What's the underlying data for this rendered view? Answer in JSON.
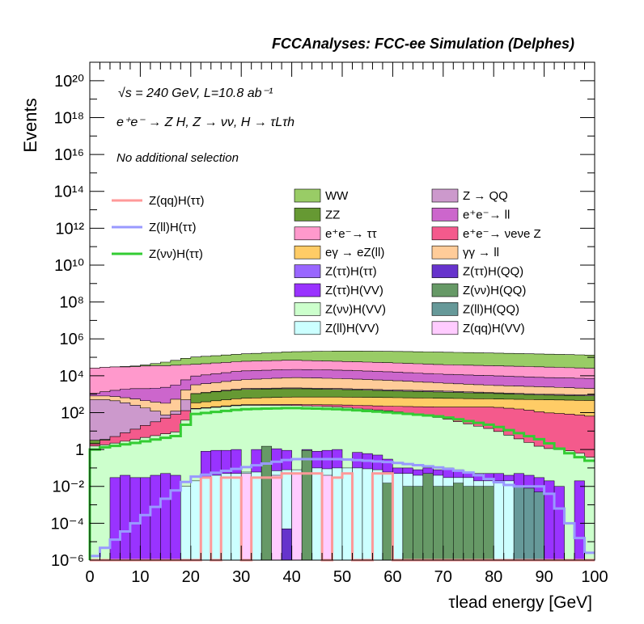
{
  "chart_data": {
    "type": "area",
    "title": "FCCAnalyses: FCC-ee Simulation (Delphes)",
    "annotations": [
      "√s = 240 GeV, L=10.8 ab⁻¹",
      "e⁺e⁻ → Z H, Z → νν, H → τLτh",
      "No additional selection"
    ],
    "xlabel": "τlead energy [GeV]",
    "ylabel": "Events",
    "xlim": [
      0,
      100
    ],
    "ylim": [
      1e-06,
      1e+21
    ],
    "log_y": true,
    "x_ticks": [
      "0",
      "10",
      "20",
      "30",
      "40",
      "50",
      "60",
      "70",
      "80",
      "90",
      "100"
    ],
    "y_ticks": [
      "10⁻⁶",
      "10⁻⁴",
      "10⁻²",
      "1",
      "10²",
      "10⁴",
      "10⁶",
      "10⁸",
      "10¹⁰",
      "10¹²",
      "10¹⁴",
      "10¹⁶",
      "10¹⁸",
      "10²⁰"
    ],
    "bins": 50,
    "stack_levels": [
      {
        "name": "Z(νν)H(VV)",
        "color": "#ccffcc",
        "x": [
          0,
          2,
          6,
          10,
          16,
          18,
          20,
          30,
          40,
          50,
          60,
          70,
          80,
          86,
          90,
          96,
          100
        ],
        "y": [
          1.5,
          1.6,
          2.5,
          4,
          8,
          10,
          150,
          250,
          250,
          200,
          120,
          50,
          12,
          3,
          1.2,
          0.8,
          0.3
        ]
      },
      {
        "name": "e⁺e⁻ → νeνe Z",
        "color": "#f45a8c",
        "x": [
          0,
          20,
          30,
          40,
          50,
          60,
          70,
          80,
          86,
          90,
          96,
          100
        ],
        "y": [
          1.6,
          160,
          270,
          280,
          260,
          220,
          200,
          200,
          150,
          100,
          80,
          60
        ]
      },
      {
        "name": "eγ → eZ(ll)",
        "color": "#ffcc66",
        "x": [
          0,
          10,
          18,
          20,
          30,
          40,
          50,
          60,
          70,
          80,
          90,
          100
        ],
        "y": [
          2,
          3,
          5,
          320,
          600,
          700,
          700,
          650,
          600,
          550,
          500,
          450
        ]
      },
      {
        "name": "ZZ",
        "color": "#669933",
        "x": [
          0,
          10,
          18,
          20,
          30,
          40,
          50,
          60,
          70,
          80,
          90,
          100
        ],
        "y": [
          3,
          5,
          12,
          1000,
          1800,
          2000,
          1800,
          1500,
          1300,
          1100,
          900,
          800
        ]
      },
      {
        "name": "Z → QQ",
        "color": "#cc99cc",
        "x": [
          0,
          4,
          8,
          12,
          16,
          20,
          30,
          40,
          50,
          60,
          70,
          80,
          90,
          100
        ],
        "y": [
          500,
          500,
          300,
          150,
          60,
          1000,
          2000,
          2200,
          2000,
          1700,
          1500,
          1200,
          1000,
          900
        ]
      },
      {
        "name": "γγ → ll",
        "color": "#ffcc99",
        "x": [
          0,
          4,
          8,
          12,
          16,
          20,
          30,
          40,
          50,
          60,
          70,
          80,
          90,
          100
        ],
        "y": [
          800,
          800,
          600,
          400,
          300,
          3000,
          6000,
          8000,
          7000,
          5500,
          4000,
          3000,
          2500,
          2000
        ]
      },
      {
        "name": "e⁺e⁻ → ll",
        "color": "#cc66cc",
        "x": [
          0,
          4,
          8,
          12,
          16,
          18,
          20,
          30,
          40,
          50,
          60,
          70,
          80,
          90,
          100
        ],
        "y": [
          1000,
          1500,
          2000,
          2000,
          2500,
          4000,
          9000,
          18000,
          22000,
          20000,
          16000,
          12000,
          10000,
          8000,
          7000
        ]
      },
      {
        "name": "e⁺e⁻ → ττ",
        "color": "#ff99cc",
        "x": [
          0,
          4,
          8,
          12,
          16,
          18,
          20,
          30,
          40,
          50,
          60,
          70,
          80,
          90,
          100
        ],
        "y": [
          25000,
          30000,
          30000,
          35000,
          35000,
          40000,
          40000,
          60000,
          70000,
          60000,
          50000,
          40000,
          35000,
          30000,
          25000
        ]
      },
      {
        "name": "WW",
        "color": "#99cc66",
        "x": [
          0,
          10,
          16,
          20,
          30,
          40,
          50,
          60,
          70,
          80,
          90,
          100
        ],
        "y": [
          25000,
          35000,
          60000,
          100000,
          150000,
          200000,
          220000,
          210000,
          190000,
          170000,
          150000,
          130000
        ]
      }
    ],
    "bars": [
      {
        "x": 4,
        "y": 0.03,
        "color": "#9933ff"
      },
      {
        "x": 6,
        "y": 0.04,
        "color": "#9933ff"
      },
      {
        "x": 8,
        "y": 0.03,
        "color": "#9933ff"
      },
      {
        "x": 10,
        "y": 0.03,
        "color": "#9933ff"
      },
      {
        "x": 12,
        "y": 0.04,
        "color": "#9933ff"
      },
      {
        "x": 14,
        "y": 0.05,
        "color": "#9933ff"
      },
      {
        "x": 16,
        "y": 0.04,
        "color": "#9933ff"
      },
      {
        "x": 22,
        "y": 0.8,
        "color": "#9933ff"
      },
      {
        "x": 24,
        "y": 0.9,
        "color": "#9933ff"
      },
      {
        "x": 26,
        "y": 0.9,
        "color": "#9933ff"
      },
      {
        "x": 28,
        "y": 1.0,
        "color": "#9933ff"
      },
      {
        "x": 32,
        "y": 1.0,
        "color": "#9933ff"
      },
      {
        "x": 36,
        "y": 1.1,
        "color": "#9933ff"
      },
      {
        "x": 38,
        "y": 0.9,
        "color": "#9933ff"
      },
      {
        "x": 42,
        "y": 1.0,
        "color": "#9933ff"
      },
      {
        "x": 44,
        "y": 0.8,
        "color": "#9933ff"
      },
      {
        "x": 46,
        "y": 0.9,
        "color": "#9933ff"
      },
      {
        "x": 48,
        "y": 1.0,
        "color": "#9933ff"
      },
      {
        "x": 52,
        "y": 0.7,
        "color": "#9933ff"
      },
      {
        "x": 54,
        "y": 0.6,
        "color": "#9933ff"
      },
      {
        "x": 56,
        "y": 0.5,
        "color": "#9933ff"
      },
      {
        "x": 58,
        "y": 0.3,
        "color": "#9933ff"
      },
      {
        "x": 60,
        "y": 0.1,
        "color": "#9933ff"
      },
      {
        "x": 62,
        "y": 0.1,
        "color": "#9933ff"
      },
      {
        "x": 64,
        "y": 0.08,
        "color": "#9933ff"
      },
      {
        "x": 66,
        "y": 0.1,
        "color": "#9933ff"
      },
      {
        "x": 68,
        "y": 0.08,
        "color": "#9933ff"
      },
      {
        "x": 70,
        "y": 0.1,
        "color": "#9933ff"
      },
      {
        "x": 72,
        "y": 0.08,
        "color": "#9933ff"
      },
      {
        "x": 74,
        "y": 0.06,
        "color": "#9933ff"
      },
      {
        "x": 76,
        "y": 0.05,
        "color": "#9933ff"
      },
      {
        "x": 78,
        "y": 0.05,
        "color": "#9933ff"
      },
      {
        "x": 80,
        "y": 0.05,
        "color": "#9933ff"
      },
      {
        "x": 82,
        "y": 0.04,
        "color": "#9933ff"
      },
      {
        "x": 84,
        "y": 0.05,
        "color": "#9933ff"
      },
      {
        "x": 86,
        "y": 0.04,
        "color": "#9933ff"
      },
      {
        "x": 88,
        "y": 0.03,
        "color": "#9933ff"
      },
      {
        "x": 90,
        "y": 0.02,
        "color": "#9933ff"
      },
      {
        "x": 92,
        "y": 0.01,
        "color": "#9933ff"
      },
      {
        "x": 96,
        "y": 0.02,
        "color": "#9933ff"
      },
      {
        "x": 18,
        "y": 0.01,
        "color": "#ccffff"
      },
      {
        "x": 20,
        "y": 0.02,
        "color": "#ccffff"
      },
      {
        "x": 22,
        "y": 0.03,
        "color": "#ccffff"
      },
      {
        "x": 24,
        "y": 0.04,
        "color": "#ccffff"
      },
      {
        "x": 26,
        "y": 0.05,
        "color": "#ccffff"
      },
      {
        "x": 28,
        "y": 0.05,
        "color": "#ccffff"
      },
      {
        "x": 30,
        "y": 0.06,
        "color": "#ccffff"
      },
      {
        "x": 32,
        "y": 0.06,
        "color": "#ccffff"
      },
      {
        "x": 36,
        "y": 0.07,
        "color": "#ccffff"
      },
      {
        "x": 38,
        "y": 0.08,
        "color": "#ccffff"
      },
      {
        "x": 40,
        "y": 0.08,
        "color": "#ccffff"
      },
      {
        "x": 42,
        "y": 0.1,
        "color": "#ccffff"
      },
      {
        "x": 44,
        "y": 0.1,
        "color": "#ccffff"
      },
      {
        "x": 46,
        "y": 0.09,
        "color": "#ccffff"
      },
      {
        "x": 48,
        "y": 0.1,
        "color": "#ccffff"
      },
      {
        "x": 50,
        "y": 0.1,
        "color": "#ccffff"
      },
      {
        "x": 52,
        "y": 0.1,
        "color": "#ccffff"
      },
      {
        "x": 54,
        "y": 0.09,
        "color": "#ccffff"
      },
      {
        "x": 56,
        "y": 0.08,
        "color": "#ccffff"
      },
      {
        "x": 58,
        "y": 0.06,
        "color": "#ccffff"
      },
      {
        "x": 60,
        "y": 0.05,
        "color": "#ccffff"
      },
      {
        "x": 62,
        "y": 0.05,
        "color": "#ccffff"
      },
      {
        "x": 64,
        "y": 0.04,
        "color": "#ccffff"
      },
      {
        "x": 66,
        "y": 0.04,
        "color": "#ccffff"
      },
      {
        "x": 68,
        "y": 0.04,
        "color": "#ccffff"
      },
      {
        "x": 70,
        "y": 0.03,
        "color": "#ccffff"
      },
      {
        "x": 72,
        "y": 0.03,
        "color": "#ccffff"
      },
      {
        "x": 74,
        "y": 0.03,
        "color": "#ccffff"
      },
      {
        "x": 76,
        "y": 0.02,
        "color": "#ccffff"
      },
      {
        "x": 78,
        "y": 0.02,
        "color": "#ccffff"
      },
      {
        "x": 80,
        "y": 0.02,
        "color": "#ccffff"
      },
      {
        "x": 82,
        "y": 0.02,
        "color": "#ccffff"
      },
      {
        "x": 34,
        "y": 1.5,
        "color": "#669966"
      },
      {
        "x": 42,
        "y": 0.9,
        "color": "#669966"
      },
      {
        "x": 58,
        "y": 0.015,
        "color": "#669966"
      },
      {
        "x": 62,
        "y": 0.01,
        "color": "#669966"
      },
      {
        "x": 64,
        "y": 0.01,
        "color": "#669966"
      },
      {
        "x": 66,
        "y": 0.05,
        "color": "#669966"
      },
      {
        "x": 68,
        "y": 0.01,
        "color": "#669966"
      },
      {
        "x": 70,
        "y": 0.01,
        "color": "#669966"
      },
      {
        "x": 72,
        "y": 0.015,
        "color": "#669966"
      },
      {
        "x": 74,
        "y": 0.01,
        "color": "#669966"
      },
      {
        "x": 76,
        "y": 0.01,
        "color": "#669966"
      },
      {
        "x": 78,
        "y": 0.01,
        "color": "#669966"
      },
      {
        "x": 84,
        "y": 0.01,
        "color": "#669999"
      },
      {
        "x": 86,
        "y": 0.008,
        "color": "#669999"
      },
      {
        "x": 88,
        "y": 0.005,
        "color": "#669999"
      },
      {
        "x": 38,
        "y": 5e-05,
        "color": "#6633cc"
      },
      {
        "x": 30,
        "y": 0.05,
        "color": "#ffccff"
      },
      {
        "x": 36,
        "y": 0.04,
        "color": "#ffccff"
      },
      {
        "x": 40,
        "y": 0.05,
        "color": "#ffccff"
      },
      {
        "x": 46,
        "y": 0.04,
        "color": "#ffccff"
      }
    ],
    "lines": [
      {
        "name": "Z(qq)H(ττ)",
        "color": "#ff9999",
        "x": [
          0,
          20,
          22,
          24,
          26,
          28,
          30,
          32,
          38,
          40,
          44,
          46,
          48,
          50,
          52,
          56,
          58,
          60
        ],
        "y": [
          1e-06,
          1e-06,
          0.03,
          1e-06,
          0.03,
          0.03,
          1e-06,
          0.03,
          0.05,
          0.05,
          0.05,
          1e-06,
          0.03,
          0.05,
          1e-06,
          0.05,
          0.05,
          1e-06
        ]
      },
      {
        "name": "Z(ll)H(ττ)",
        "color": "#9999ff",
        "x": [
          0,
          18,
          20,
          30,
          40,
          50,
          60,
          70,
          76,
          80,
          84,
          86,
          90,
          100
        ],
        "y": [
          1e-06,
          0.01,
          0.03,
          0.1,
          0.3,
          0.3,
          0.2,
          0.1,
          0.05,
          0.02,
          0.01,
          0.01,
          0.01,
          1e-06
        ]
      },
      {
        "name": "Z(νν)H(ττ)",
        "color": "#33cc33",
        "x": [
          0,
          1,
          2,
          10,
          18,
          20,
          30,
          40,
          50,
          60,
          70,
          80,
          90,
          94,
          98,
          100
        ],
        "y": [
          1e-06,
          1,
          1.2,
          2.5,
          6,
          80,
          150,
          180,
          150,
          100,
          60,
          20,
          3,
          0.8,
          0.3,
          0.2
        ]
      }
    ],
    "legend_left": [
      {
        "label": "Z(qq)H(ττ)",
        "color": "#ff9999"
      },
      {
        "label": "Z(ll)H(ττ)",
        "color": "#9999ff"
      },
      {
        "label": "Z(νν)H(ττ)",
        "color": "#33cc33"
      }
    ],
    "legend_mid": [
      {
        "label": "WW",
        "color": "#99cc66"
      },
      {
        "label": "ZZ",
        "color": "#669933"
      },
      {
        "label": "e⁺e⁻→ ττ",
        "color": "#ff99cc"
      },
      {
        "label": "eγ → eZ(ll)",
        "color": "#ffcc66"
      },
      {
        "label": "Z(ττ)H(ττ)",
        "color": "#9966ff"
      },
      {
        "label": "Z(ττ)H(VV)",
        "color": "#9933ff"
      },
      {
        "label": "Z(νν)H(VV)",
        "color": "#ccffcc"
      },
      {
        "label": "Z(ll)H(VV)",
        "color": "#ccffff"
      }
    ],
    "legend_right": [
      {
        "label": "Z → QQ",
        "color": "#cc99cc"
      },
      {
        "label": "e⁺e⁻→ ll",
        "color": "#cc66cc"
      },
      {
        "label": "e⁺e⁻→ νeνe Z",
        "color": "#f45a8c"
      },
      {
        "label": "γγ → ll",
        "color": "#ffcc99"
      },
      {
        "label": "Z(ττ)H(QQ)",
        "color": "#6633cc"
      },
      {
        "label": "Z(νν)H(QQ)",
        "color": "#669966"
      },
      {
        "label": "Z(ll)H(QQ)",
        "color": "#669999"
      },
      {
        "label": "Z(qq)H(VV)",
        "color": "#ffccff"
      }
    ]
  }
}
